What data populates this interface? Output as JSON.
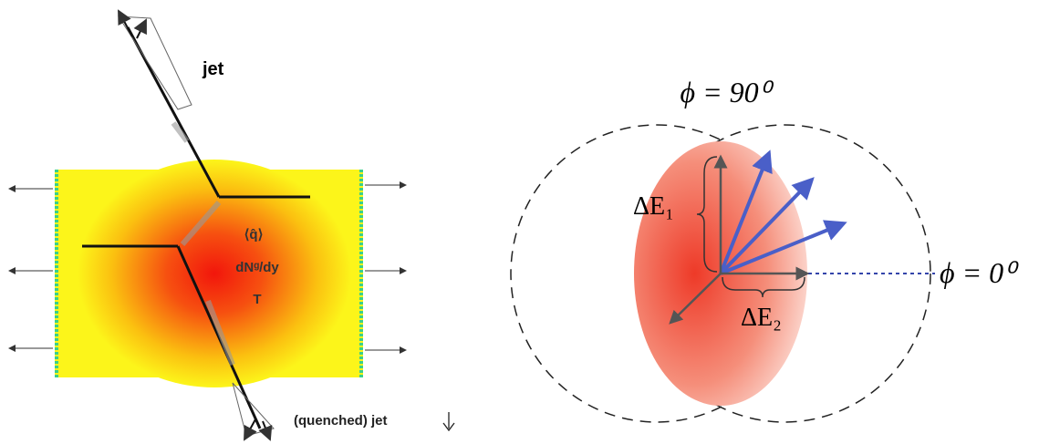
{
  "left_panel": {
    "jet_label": "jet",
    "medium_labels": [
      "⟨q̂⟩",
      "dNᵍ/dy",
      "T"
    ],
    "quenched_jet_label": "(quenched) jet"
  },
  "right_panel": {
    "phi_90_label": "ϕ = 90⁰",
    "delta_e1_label": "ΔE₁",
    "delta_e2_label": "ΔE₂",
    "phi_0_label": "ϕ = 0⁰"
  }
}
